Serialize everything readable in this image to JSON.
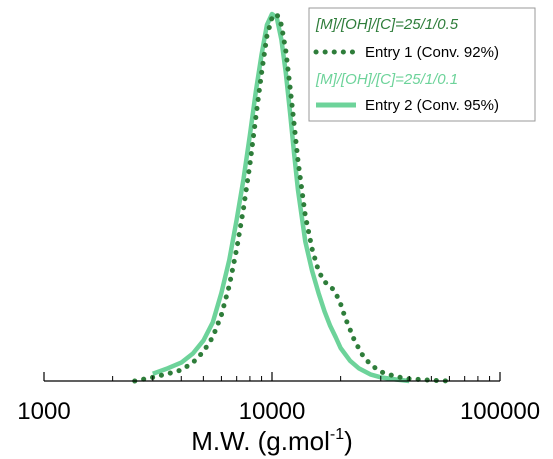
{
  "chart_data": {
    "type": "line",
    "x_scale": "log",
    "xlim": [
      1000,
      100000
    ],
    "x_ticks": [
      {
        "value": 1000,
        "label": "1000"
      },
      {
        "value": 10000,
        "label": "10000"
      },
      {
        "value": 100000,
        "label": "100000"
      }
    ],
    "xlabel": "M.W. (g.mol",
    "xlabel_superscript": "-1",
    "xlabel_close": ")",
    "ylabel": "",
    "y_axis_visible": false,
    "ylim": [
      0,
      1
    ],
    "grid": false,
    "legend_position": "top-right",
    "legend": [
      {
        "heading": "[M]/[OH]/[C]=25/1/0.5",
        "heading_color": "#2e7d3a",
        "label": "Entry 1 (Conv. 92%)"
      },
      {
        "heading": "[M]/[OH]/[C]=25/1/0.1",
        "heading_color": "#6dd39a",
        "label": "Entry 2 (Conv. 95%)"
      }
    ],
    "series": [
      {
        "name": "Entry 1 (Conv. 92%)",
        "color": "#2e7d3a",
        "style": "dotted",
        "x": [
          2500,
          3000,
          3500,
          4000,
          4500,
          5000,
          5500,
          6000,
          6500,
          7000,
          7500,
          8000,
          8500,
          9000,
          9500,
          10000,
          10500,
          11000,
          11500,
          12000,
          12500,
          13000,
          14000,
          15000,
          16000,
          17000,
          18000,
          19000,
          20000,
          21000,
          22000,
          23000,
          25000,
          27000,
          30000,
          35000,
          40000,
          50000,
          60000
        ],
        "y": [
          0.0,
          0.01,
          0.02,
          0.03,
          0.05,
          0.08,
          0.12,
          0.18,
          0.26,
          0.36,
          0.47,
          0.59,
          0.72,
          0.84,
          0.94,
          0.99,
          1.0,
          0.97,
          0.9,
          0.8,
          0.7,
          0.6,
          0.45,
          0.36,
          0.3,
          0.27,
          0.26,
          0.24,
          0.21,
          0.17,
          0.14,
          0.11,
          0.07,
          0.045,
          0.025,
          0.012,
          0.006,
          0.002,
          0.0
        ]
      },
      {
        "name": "Entry 2 (Conv. 95%)",
        "color": "#6dd39a",
        "style": "solid",
        "x": [
          3000,
          3500,
          4000,
          4500,
          5000,
          5500,
          6000,
          6500,
          7000,
          7500,
          8000,
          8500,
          9000,
          9500,
          10000,
          10500,
          11000,
          11500,
          12000,
          12500,
          13000,
          14000,
          15000,
          16000,
          17000,
          18000,
          19000,
          20000,
          22000,
          24000,
          27000,
          30000,
          35000,
          40000
        ],
        "y": [
          0.02,
          0.035,
          0.05,
          0.075,
          0.11,
          0.16,
          0.24,
          0.33,
          0.44,
          0.55,
          0.67,
          0.79,
          0.89,
          0.97,
          1.0,
          0.99,
          0.93,
          0.84,
          0.73,
          0.62,
          0.52,
          0.38,
          0.3,
          0.24,
          0.19,
          0.15,
          0.12,
          0.09,
          0.055,
          0.035,
          0.018,
          0.01,
          0.004,
          0.0
        ]
      }
    ]
  }
}
